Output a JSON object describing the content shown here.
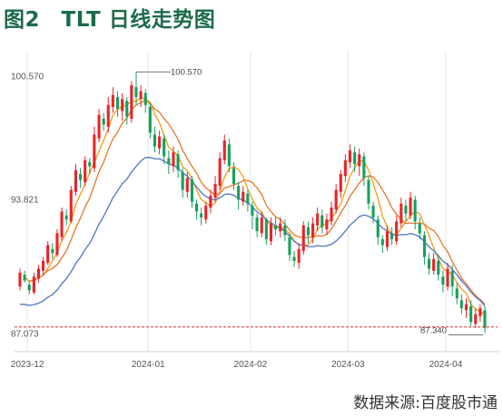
{
  "figure": {
    "title": "图2　TLT 日线走势图",
    "source": "数据来源:百度股市通"
  },
  "colors": {
    "up": "#e8242a",
    "down": "#17a05d",
    "ma_short": "#f39c12",
    "ma_mid": "#e8762a",
    "ma_long": "#5b7cc9",
    "ref_line": "#e8242a",
    "axis_text": "#555555",
    "title": "#1c6b4b"
  },
  "chart_data": {
    "type": "candlestick",
    "y_ticks": [
      "100.570",
      "93.821",
      "87.073"
    ],
    "x_ticks": [
      "2023-12",
      "2024-01",
      "2024-02",
      "2024-03",
      "2024-04"
    ],
    "ylim": [
      86.4,
      101.6
    ],
    "high_label": "100.570",
    "low_label": "87.340",
    "ref_level": 87.65,
    "candles": [
      [
        89.7,
        90.4,
        89.5,
        90.6
      ],
      [
        90.3,
        90.0,
        89.9,
        90.5
      ],
      [
        89.8,
        89.5,
        89.3,
        90.0
      ],
      [
        89.4,
        90.2,
        89.3,
        90.4
      ],
      [
        90.1,
        90.6,
        89.9,
        90.8
      ],
      [
        90.5,
        91.0,
        90.3,
        91.2
      ],
      [
        90.9,
        91.8,
        90.8,
        92.0
      ],
      [
        91.6,
        91.4,
        91.1,
        91.9
      ],
      [
        91.3,
        92.4,
        91.2,
        92.6
      ],
      [
        92.2,
        93.5,
        92.0,
        93.7
      ],
      [
        93.3,
        93.1,
        92.8,
        93.6
      ],
      [
        93.0,
        94.6,
        92.9,
        94.8
      ],
      [
        94.5,
        95.6,
        94.3,
        95.9
      ],
      [
        95.4,
        95.1,
        94.7,
        95.7
      ],
      [
        95.0,
        96.1,
        94.8,
        96.3
      ],
      [
        96.0,
        95.8,
        95.4,
        96.2
      ],
      [
        95.7,
        97.4,
        95.5,
        97.8
      ],
      [
        97.2,
        98.4,
        97.0,
        98.7
      ],
      [
        98.2,
        97.9,
        97.6,
        98.5
      ],
      [
        97.8,
        98.9,
        97.5,
        99.3
      ],
      [
        98.8,
        99.4,
        98.5,
        99.8
      ],
      [
        99.3,
        98.7,
        98.3,
        99.6
      ],
      [
        98.6,
        99.2,
        98.1,
        99.5
      ],
      [
        99.1,
        98.3,
        97.9,
        99.3
      ],
      [
        98.2,
        99.9,
        98.0,
        100.1
      ],
      [
        99.8,
        99.3,
        98.9,
        100.57
      ],
      [
        99.2,
        99.6,
        98.8,
        99.9
      ],
      [
        99.5,
        98.9,
        98.5,
        99.7
      ],
      [
        98.8,
        97.5,
        97.2,
        99.0
      ],
      [
        97.4,
        96.8,
        96.5,
        97.8
      ],
      [
        96.7,
        97.3,
        96.4,
        97.6
      ],
      [
        97.2,
        96.3,
        95.9,
        97.4
      ],
      [
        96.2,
        95.9,
        95.4,
        96.6
      ],
      [
        95.8,
        96.5,
        95.5,
        96.8
      ],
      [
        96.4,
        95.6,
        95.2,
        96.6
      ],
      [
        95.5,
        94.6,
        94.2,
        95.7
      ],
      [
        94.5,
        95.2,
        94.2,
        95.5
      ],
      [
        95.1,
        94.0,
        93.7,
        95.3
      ],
      [
        93.9,
        93.5,
        93.1,
        94.1
      ],
      [
        93.4,
        93.2,
        92.8,
        93.7
      ],
      [
        93.1,
        93.8,
        92.9,
        94.0
      ],
      [
        93.7,
        94.3,
        93.4,
        94.6
      ],
      [
        94.2,
        94.9,
        94.0,
        95.3
      ],
      [
        94.8,
        96.2,
        94.6,
        96.5
      ],
      [
        96.1,
        97.1,
        95.9,
        97.4
      ],
      [
        96.9,
        95.8,
        95.5,
        97.2
      ],
      [
        95.7,
        94.9,
        94.6,
        96.0
      ],
      [
        94.8,
        94.1,
        93.6,
        95.0
      ],
      [
        94.0,
        94.5,
        93.8,
        94.8
      ],
      [
        94.4,
        93.9,
        93.5,
        94.6
      ],
      [
        93.8,
        93.3,
        92.6,
        94.0
      ],
      [
        93.2,
        92.5,
        92.2,
        93.4
      ],
      [
        92.4,
        93.2,
        92.2,
        93.5
      ],
      [
        93.1,
        92.1,
        91.8,
        93.2
      ],
      [
        92.0,
        92.9,
        91.8,
        93.2
      ],
      [
        92.8,
        92.6,
        92.3,
        93.2
      ],
      [
        92.5,
        92.9,
        92.2,
        93.2
      ],
      [
        92.8,
        92.3,
        92.0,
        93.1
      ],
      [
        92.2,
        91.3,
        91.0,
        92.4
      ],
      [
        91.2,
        91.0,
        90.7,
        91.5
      ],
      [
        90.9,
        91.6,
        90.6,
        91.9
      ],
      [
        91.5,
        92.8,
        91.3,
        93.0
      ],
      [
        92.7,
        92.3,
        91.9,
        93.0
      ],
      [
        92.2,
        92.9,
        91.9,
        93.2
      ],
      [
        92.8,
        93.4,
        92.5,
        93.7
      ],
      [
        93.3,
        92.7,
        92.4,
        93.6
      ],
      [
        92.6,
        93.1,
        92.3,
        93.4
      ],
      [
        93.0,
        93.7,
        92.8,
        94.0
      ],
      [
        93.6,
        94.6,
        93.4,
        94.9
      ],
      [
        94.5,
        95.4,
        94.2,
        95.6
      ],
      [
        95.3,
        96.1,
        95.0,
        96.4
      ],
      [
        96.0,
        96.6,
        95.7,
        96.9
      ],
      [
        96.5,
        95.9,
        95.5,
        96.8
      ],
      [
        95.8,
        96.4,
        95.3,
        96.7
      ],
      [
        96.3,
        95.2,
        94.8,
        96.5
      ],
      [
        95.1,
        93.9,
        93.6,
        95.3
      ],
      [
        93.8,
        93.2,
        92.9,
        94.0
      ],
      [
        93.1,
        92.2,
        91.8,
        93.3
      ],
      [
        92.1,
        91.8,
        91.4,
        92.3
      ],
      [
        91.7,
        92.5,
        91.5,
        92.8
      ],
      [
        92.4,
        92.1,
        91.8,
        92.7
      ],
      [
        92.0,
        93.0,
        91.8,
        93.3
      ],
      [
        92.9,
        93.9,
        92.7,
        94.2
      ],
      [
        93.8,
        93.4,
        93.0,
        94.1
      ],
      [
        93.3,
        94.2,
        93.1,
        94.5
      ],
      [
        94.1,
        93.0,
        92.6,
        94.3
      ],
      [
        92.9,
        92.4,
        92.1,
        93.2
      ],
      [
        92.3,
        91.2,
        90.8,
        92.5
      ],
      [
        91.1,
        90.6,
        90.3,
        91.4
      ],
      [
        90.5,
        91.1,
        90.3,
        91.4
      ],
      [
        91.0,
        90.3,
        90.0,
        91.3
      ],
      [
        90.2,
        89.8,
        89.4,
        90.5
      ],
      [
        89.7,
        90.6,
        89.5,
        90.9
      ],
      [
        90.5,
        89.7,
        89.2,
        90.8
      ],
      [
        89.6,
        89.1,
        88.8,
        89.9
      ],
      [
        89.0,
        88.6,
        88.3,
        89.3
      ],
      [
        88.5,
        88.8,
        88.1,
        89.1
      ],
      [
        88.7,
        87.9,
        87.7,
        89.0
      ],
      [
        87.8,
        88.3,
        87.6,
        88.6
      ],
      [
        88.2,
        88.6,
        87.9,
        88.8
      ],
      [
        88.5,
        87.6,
        87.34,
        88.7
      ]
    ]
  }
}
